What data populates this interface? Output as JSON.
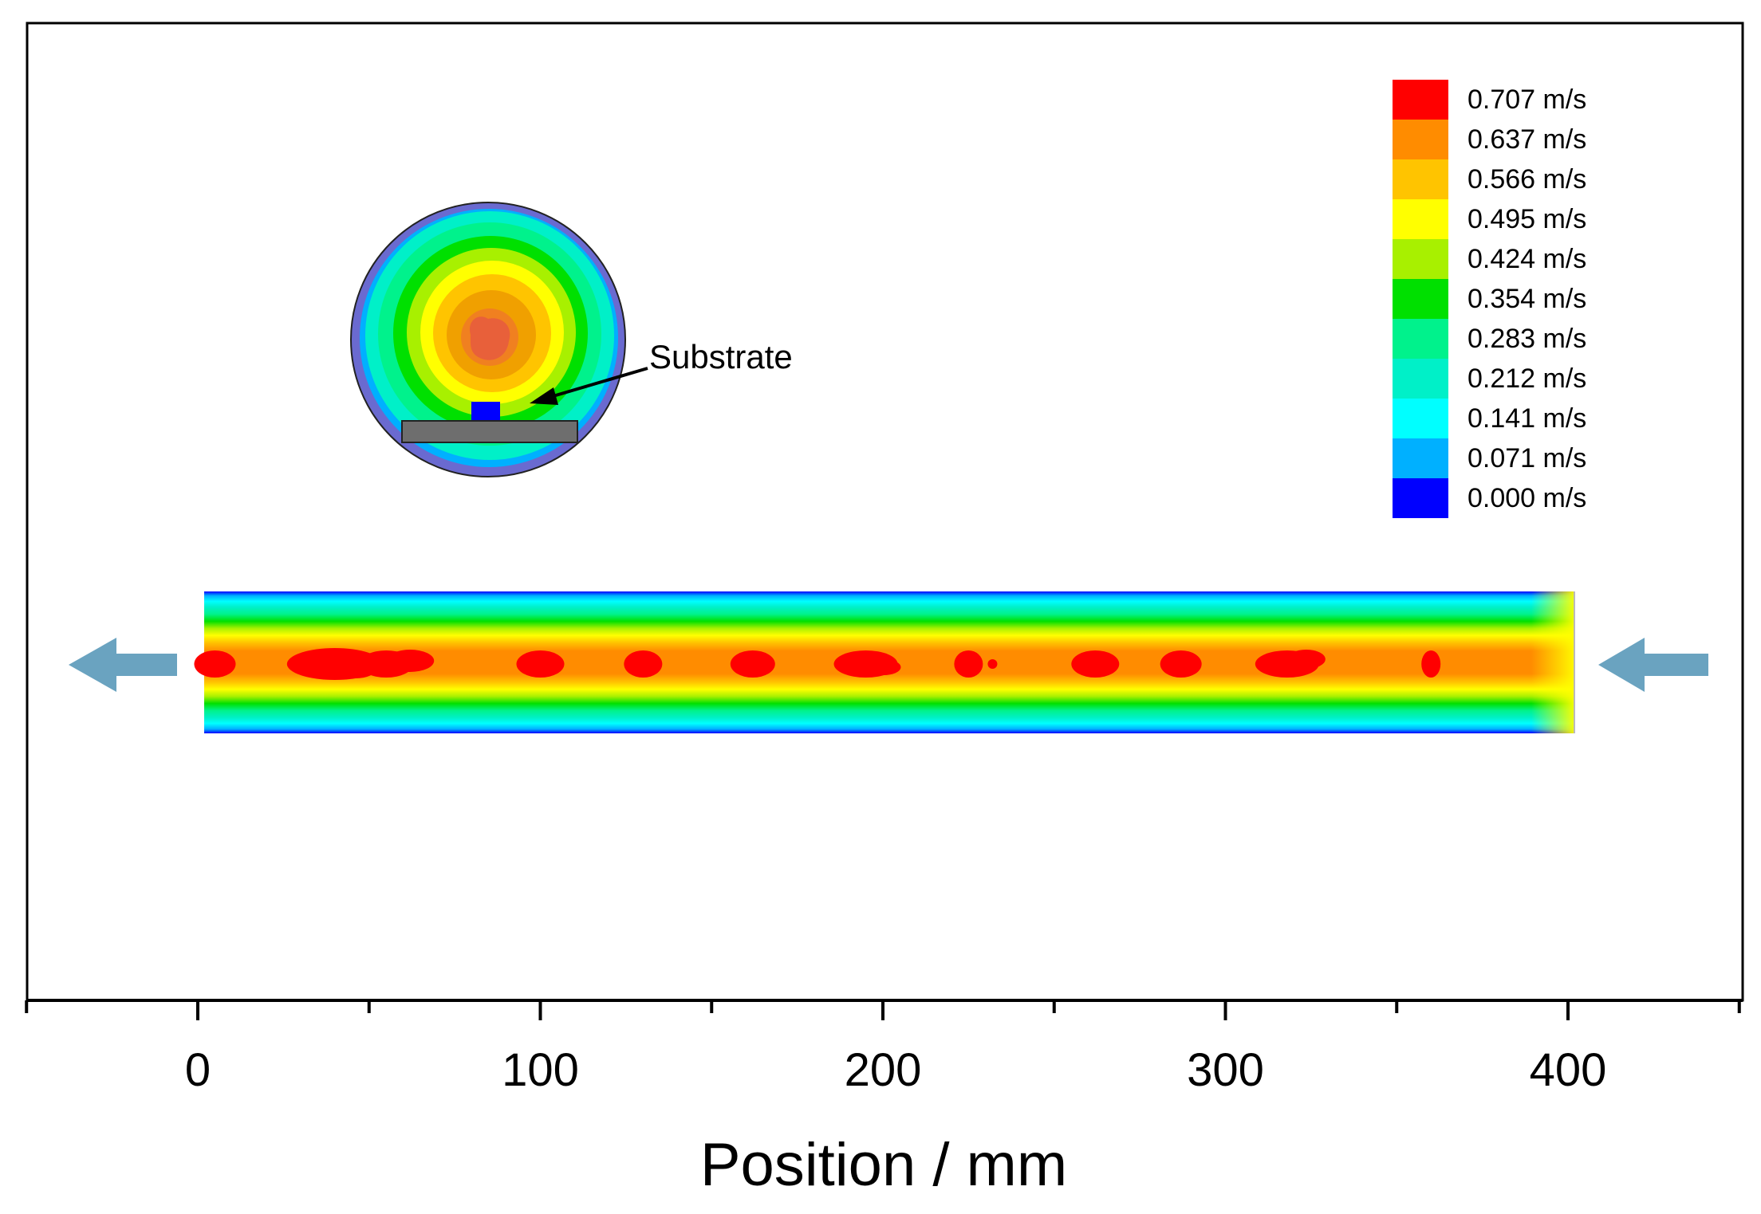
{
  "chart_data": {
    "type": "heatmap",
    "title": "",
    "xlabel": "Position / mm",
    "ylabel": "",
    "xlim": [
      -50,
      450
    ],
    "x_ticks_major": [
      0,
      100,
      200,
      300,
      400
    ],
    "x_ticks_minor": [
      -50,
      50,
      150,
      250,
      350,
      450
    ],
    "x_tick_labels": [
      "0",
      "100",
      "200",
      "300",
      "400"
    ],
    "field": "velocity magnitude",
    "unit": "m/s",
    "legend": {
      "position": "top-right",
      "levels": [
        {
          "label": "0.707 m/s",
          "value": 0.707,
          "color": "#ff0000"
        },
        {
          "label": "0.637 m/s",
          "value": 0.637,
          "color": "#ff8c00"
        },
        {
          "label": "0.566 m/s",
          "value": 0.566,
          "color": "#ffc400"
        },
        {
          "label": "0.495 m/s",
          "value": 0.495,
          "color": "#ffff00"
        },
        {
          "label": "0.424 m/s",
          "value": 0.424,
          "color": "#a8f000"
        },
        {
          "label": "0.354 m/s",
          "value": 0.354,
          "color": "#00e000"
        },
        {
          "label": "0.283 m/s",
          "value": 0.283,
          "color": "#00f28c"
        },
        {
          "label": "0.212 m/s",
          "value": 0.212,
          "color": "#00f0c8"
        },
        {
          "label": "0.141 m/s",
          "value": 0.141,
          "color": "#00ffff"
        },
        {
          "label": "0.071 m/s",
          "value": 0.071,
          "color": "#00b0ff"
        },
        {
          "label": "0.000 m/s",
          "value": 0.0,
          "color": "#0000ff"
        }
      ]
    },
    "channel": {
      "x_start": 0,
      "x_end": 400,
      "core_hotspots_x": [
        5,
        40,
        55,
        100,
        130,
        162,
        195,
        225,
        232,
        262,
        287,
        318,
        360
      ]
    },
    "annotations": [
      {
        "text": "Substrate",
        "target": "blue substrate block in cross-section inset"
      }
    ],
    "flow_direction": "right-to-left"
  },
  "colors": {
    "arrow": "#6aa3c0",
    "support_plate": "#6e6e6e",
    "substrate": "#0000ff",
    "inset_outer_ring": "#6a6ad0",
    "inset_core": "#e8603a"
  }
}
